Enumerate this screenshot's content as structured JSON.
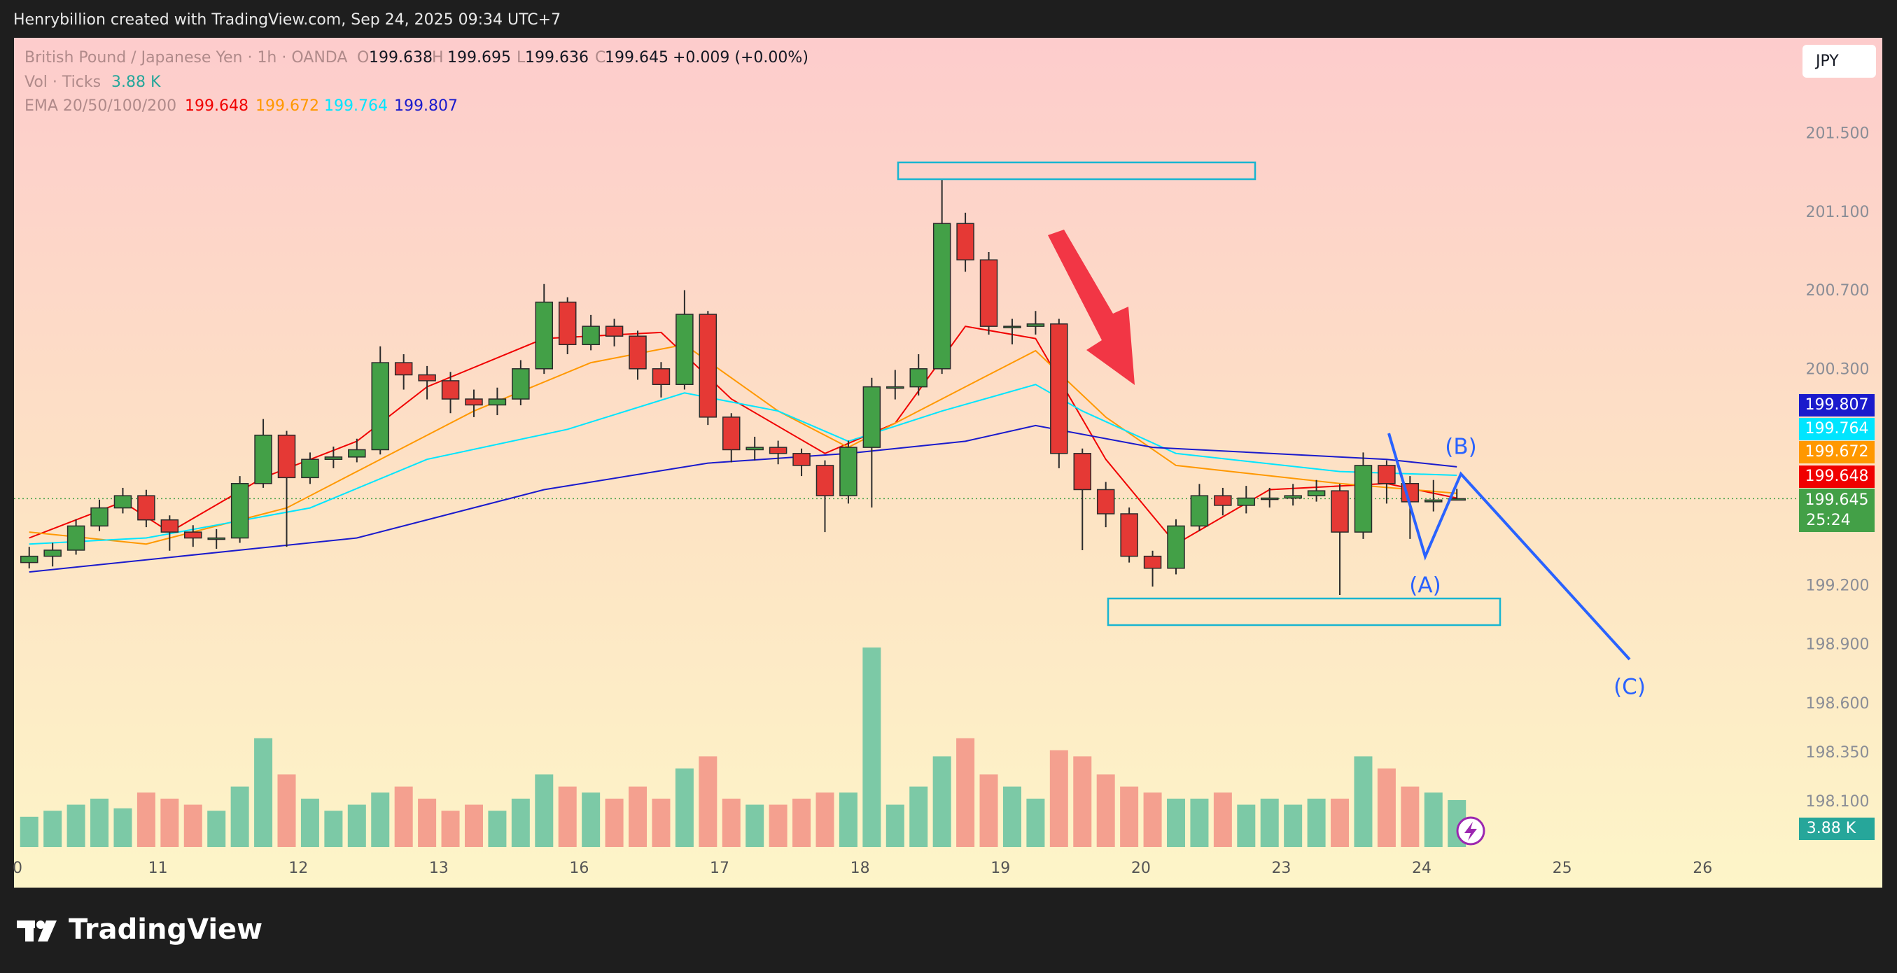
{
  "header": "Henrybillion created with TradingView.com, Sep 24, 2025 09:34 UTC+7",
  "brand": "TradingView",
  "currency": "JPY",
  "chart_data": {
    "type": "candlestick",
    "title": "British Pound / Japanese Yen · 1h · OANDA",
    "ohlc_letters": [
      "O",
      "H",
      "L",
      "C"
    ],
    "change": "+0.009 (+0.00%)",
    "timer": "25:24",
    "up_color": "#43a047",
    "down_color": "#e53935",
    "grid": false,
    "xlim": [
      -0.6,
      304
    ],
    "xticks": [
      0,
      {
        "value": 24,
        "label": "11"
      },
      {
        "value": 48,
        "label": "12"
      },
      {
        "value": 72,
        "label": "13"
      },
      {
        "value": 96,
        "label": "16"
      },
      {
        "value": 120,
        "label": "17"
      },
      {
        "value": 144,
        "label": "18"
      },
      {
        "value": 168,
        "label": "19"
      },
      {
        "value": 192,
        "label": "20"
      },
      {
        "value": 216,
        "label": "23"
      },
      {
        "value": 240,
        "label": "24"
      },
      {
        "value": 264,
        "label": "25"
      },
      {
        "value": 288,
        "label": "26"
      }
    ],
    "ylim": [
      197.666,
      201.99
    ],
    "yticks": [
      {
        "value": 201.5,
        "label": "201.500"
      },
      {
        "value": 201.1,
        "label": "201.100"
      },
      {
        "value": 200.7,
        "label": "200.700"
      },
      {
        "value": 200.3,
        "label": "200.300"
      },
      {
        "value": 199.2,
        "label": "199.200"
      },
      {
        "value": 198.9,
        "label": "198.900"
      },
      {
        "value": 198.6,
        "label": "198.600"
      },
      {
        "value": 198.35,
        "label": "198.350"
      },
      {
        "value": 198.1,
        "label": "198.100"
      }
    ],
    "x": [
      2,
      6,
      10,
      14,
      18,
      22,
      26,
      30,
      34,
      38,
      42,
      46,
      50,
      54,
      58,
      62,
      66,
      70,
      74,
      78,
      82,
      86,
      90,
      94,
      98,
      102,
      106,
      110,
      114,
      118,
      122,
      126,
      130,
      134,
      138,
      142,
      146,
      150,
      154,
      158,
      162,
      166,
      170,
      174,
      178,
      182,
      186,
      190,
      194,
      198,
      202,
      206,
      210,
      214,
      218,
      222,
      226,
      230,
      234,
      238,
      242,
      246
    ],
    "open": [
      199.32,
      199.352,
      199.383,
      199.506,
      199.598,
      199.66,
      199.537,
      199.475,
      199.445,
      199.445,
      199.722,
      199.968,
      199.752,
      199.845,
      199.857,
      199.894,
      200.337,
      200.275,
      200.245,
      200.152,
      200.122,
      200.152,
      200.306,
      200.645,
      200.429,
      200.522,
      200.472,
      200.306,
      200.226,
      200.583,
      200.06,
      199.894,
      199.906,
      199.875,
      199.814,
      199.66,
      199.906,
      200.214,
      200.214,
      200.306,
      201.045,
      200.86,
      200.522,
      200.522,
      200.534,
      199.875,
      199.691,
      199.568,
      199.352,
      199.291,
      199.506,
      199.66,
      199.611,
      199.648,
      199.648,
      199.66,
      199.685,
      199.475,
      199.814,
      199.722,
      199.629,
      199.638
    ],
    "high": [
      199.4,
      199.42,
      199.54,
      199.64,
      199.7,
      199.69,
      199.56,
      199.51,
      199.49,
      199.76,
      200.05,
      199.99,
      199.88,
      199.91,
      199.95,
      200.42,
      200.38,
      200.32,
      200.29,
      200.2,
      200.21,
      200.35,
      200.737,
      200.67,
      200.58,
      200.56,
      200.5,
      200.34,
      200.706,
      200.6,
      200.08,
      199.96,
      199.94,
      199.9,
      199.84,
      199.94,
      200.26,
      200.3,
      200.38,
      201.272,
      201.1,
      200.9,
      200.56,
      200.6,
      200.56,
      199.9,
      199.73,
      199.6,
      199.38,
      199.54,
      199.72,
      199.7,
      199.71,
      199.7,
      199.72,
      199.74,
      199.72,
      199.88,
      199.84,
      199.76,
      199.74,
      199.695
    ],
    "low": [
      199.29,
      199.3,
      199.36,
      199.48,
      199.57,
      199.5,
      199.38,
      199.4,
      199.39,
      199.42,
      199.7,
      199.4,
      199.72,
      199.8,
      199.83,
      199.87,
      200.2,
      200.15,
      200.08,
      200.06,
      200.07,
      200.12,
      200.28,
      200.38,
      200.4,
      200.42,
      200.25,
      200.16,
      200.2,
      200.02,
      199.83,
      199.84,
      199.82,
      199.76,
      199.475,
      199.62,
      199.6,
      200.15,
      200.17,
      200.28,
      200.8,
      200.48,
      200.43,
      200.48,
      199.8,
      199.383,
      199.5,
      199.32,
      199.198,
      199.26,
      199.48,
      199.56,
      199.57,
      199.6,
      199.61,
      199.63,
      199.155,
      199.44,
      199.62,
      199.44,
      199.58,
      199.636
    ],
    "close": [
      199.352,
      199.383,
      199.506,
      199.598,
      199.66,
      199.537,
      199.475,
      199.445,
      199.445,
      199.722,
      199.968,
      199.752,
      199.845,
      199.857,
      199.894,
      200.337,
      200.275,
      200.245,
      200.152,
      200.122,
      200.152,
      200.306,
      200.645,
      200.429,
      200.522,
      200.472,
      200.306,
      200.226,
      200.583,
      200.06,
      199.894,
      199.906,
      199.875,
      199.814,
      199.66,
      199.906,
      200.214,
      200.214,
      200.306,
      201.045,
      200.86,
      200.522,
      200.522,
      200.534,
      199.875,
      199.691,
      199.568,
      199.352,
      199.291,
      199.506,
      199.66,
      199.611,
      199.648,
      199.648,
      199.66,
      199.685,
      199.475,
      199.814,
      199.722,
      199.629,
      199.638,
      199.645
    ],
    "volume": {
      "name": "Vol · Ticks",
      "legend_value": "3.88 K",
      "up_color": "#7cc9a6",
      "down_color": "#f4a08f",
      "values": [
        2.5,
        3.0,
        3.5,
        4.0,
        3.2,
        4.5,
        4.0,
        3.5,
        3.0,
        5.0,
        9.0,
        6.0,
        4.0,
        3.0,
        3.5,
        4.5,
        5.0,
        4.0,
        3.0,
        3.5,
        3.0,
        4.0,
        6.0,
        5.0,
        4.5,
        4.0,
        5.0,
        4.0,
        6.5,
        7.5,
        4.0,
        3.5,
        3.5,
        4.0,
        4.5,
        4.5,
        16.5,
        3.5,
        5.0,
        7.5,
        9.0,
        6.0,
        5.0,
        4.0,
        8.0,
        7.5,
        6.0,
        5.0,
        4.5,
        4.0,
        4.0,
        4.5,
        3.5,
        4.0,
        3.5,
        4.0,
        4.0,
        7.5,
        6.5,
        5.0,
        4.5,
        3.88
      ]
    },
    "ema_legend": "EMA 20/50/100/200",
    "ema": [
      {
        "color": "#f00000",
        "x": [
          2,
          18,
          26,
          42,
          58,
          70,
          90,
          110,
          122,
          138,
          150,
          162,
          174,
          186,
          198,
          214,
          234,
          246
        ],
        "values": [
          199.445,
          199.629,
          199.475,
          199.752,
          199.937,
          200.214,
          200.46,
          200.491,
          200.152,
          199.875,
          200.029,
          200.522,
          200.46,
          199.845,
          199.414,
          199.691,
          199.722,
          199.648
        ]
      },
      {
        "color": "#ff9800",
        "x": [
          2,
          22,
          46,
          58,
          78,
          98,
          114,
          130,
          142,
          162,
          174,
          186,
          198,
          226,
          246
        ],
        "values": [
          199.475,
          199.414,
          199.598,
          199.783,
          200.091,
          200.337,
          200.429,
          200.091,
          199.906,
          200.214,
          200.398,
          200.06,
          199.814,
          199.722,
          199.672
        ]
      },
      {
        "color": "#00e5ff",
        "x": [
          2,
          22,
          50,
          70,
          94,
          114,
          130,
          142,
          158,
          174,
          182,
          198,
          226,
          246
        ],
        "values": [
          199.414,
          199.445,
          199.598,
          199.845,
          199.998,
          200.183,
          200.091,
          199.937,
          200.091,
          200.226,
          200.091,
          199.875,
          199.783,
          199.764
        ]
      },
      {
        "color": "#1a1acc",
        "x": [
          2,
          58,
          90,
          118,
          142,
          162,
          174,
          194,
          234,
          246
        ],
        "values": [
          199.272,
          199.445,
          199.691,
          199.826,
          199.875,
          199.937,
          200.017,
          199.906,
          199.845,
          199.807
        ]
      }
    ],
    "annotations": [
      "(A)",
      "(B)",
      "(C)"
    ]
  }
}
